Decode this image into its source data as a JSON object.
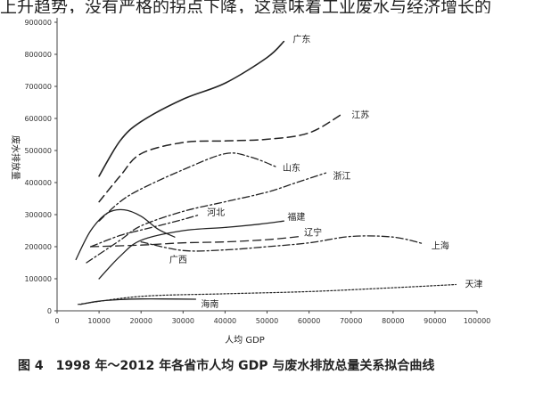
{
  "top_text": "上升趋势，没有严格的拐点下降，这意味着工业废水与经济增长的",
  "caption": "图 4　1998 年～2012 年各省市人均 GDP 与废水排放总量关系拟合曲线",
  "chart_data": {
    "type": "line",
    "title": "",
    "xlabel": "人均 GDP",
    "ylabel": "废水排放量",
    "xlim": [
      0,
      100000
    ],
    "ylim": [
      0,
      900000
    ],
    "x_ticks": [
      "0",
      "10000",
      "20000",
      "30000",
      "40000",
      "50000",
      "60000",
      "70000",
      "80000",
      "90000",
      "100000"
    ],
    "y_ticks": [
      "0",
      "100000",
      "200000",
      "300000",
      "400000",
      "500000",
      "600000",
      "700000",
      "800000",
      "900000"
    ],
    "grid": false,
    "series": [
      {
        "name": "广东",
        "dash": "solid",
        "width": 1.6,
        "points": [
          [
            10000,
            420000
          ],
          [
            15000,
            530000
          ],
          [
            20000,
            590000
          ],
          [
            30000,
            660000
          ],
          [
            40000,
            710000
          ],
          [
            50000,
            790000
          ],
          [
            54000,
            840000
          ]
        ]
      },
      {
        "name": "江苏",
        "dash": "long-dash",
        "width": 1.5,
        "points": [
          [
            10000,
            340000
          ],
          [
            15000,
            420000
          ],
          [
            20000,
            490000
          ],
          [
            30000,
            525000
          ],
          [
            40000,
            530000
          ],
          [
            50000,
            535000
          ],
          [
            60000,
            555000
          ],
          [
            68000,
            615000
          ]
        ]
      },
      {
        "name": "山东",
        "dash": "dash-dot",
        "width": 1.3,
        "points": [
          [
            10000,
            280000
          ],
          [
            15000,
            340000
          ],
          [
            20000,
            380000
          ],
          [
            30000,
            440000
          ],
          [
            40000,
            490000
          ],
          [
            46000,
            480000
          ],
          [
            52000,
            450000
          ]
        ]
      },
      {
        "name": "浙江",
        "dash": "dash-dot",
        "width": 1.3,
        "points": [
          [
            7000,
            150000
          ],
          [
            15000,
            220000
          ],
          [
            20000,
            265000
          ],
          [
            30000,
            310000
          ],
          [
            40000,
            340000
          ],
          [
            50000,
            370000
          ],
          [
            57000,
            400000
          ],
          [
            64000,
            430000
          ]
        ]
      },
      {
        "name": "河北",
        "dash": "dash-dot",
        "width": 1.3,
        "points": [
          [
            8000,
            200000
          ],
          [
            15000,
            235000
          ],
          [
            20000,
            252000
          ],
          [
            25000,
            268000
          ],
          [
            30000,
            285000
          ],
          [
            34000,
            300000
          ]
        ]
      },
      {
        "name": "福建",
        "dash": "solid",
        "width": 1.3,
        "points": [
          [
            10000,
            100000
          ],
          [
            15000,
            170000
          ],
          [
            20000,
            220000
          ],
          [
            30000,
            250000
          ],
          [
            40000,
            260000
          ],
          [
            48000,
            270000
          ],
          [
            54000,
            280000
          ]
        ]
      },
      {
        "name": "广西",
        "dash": "solid",
        "width": 1.3,
        "points": [
          [
            4500,
            160000
          ],
          [
            8000,
            250000
          ],
          [
            12000,
            305000
          ],
          [
            16000,
            315000
          ],
          [
            20000,
            295000
          ],
          [
            24000,
            255000
          ],
          [
            28000,
            230000
          ]
        ]
      },
      {
        "name": "辽宁",
        "dash": "long-dash",
        "width": 1.3,
        "points": [
          [
            8000,
            200000
          ],
          [
            20000,
            205000
          ],
          [
            30000,
            212000
          ],
          [
            40000,
            215000
          ],
          [
            50000,
            222000
          ],
          [
            58000,
            232000
          ]
        ]
      },
      {
        "name": "上海",
        "dash": "dash-dot",
        "width": 1.3,
        "points": [
          [
            20000,
            215000
          ],
          [
            30000,
            188000
          ],
          [
            40000,
            190000
          ],
          [
            50000,
            200000
          ],
          [
            60000,
            212000
          ],
          [
            70000,
            232000
          ],
          [
            80000,
            230000
          ],
          [
            87000,
            210000
          ]
        ]
      },
      {
        "name": "天津",
        "dash": "dotted",
        "width": 1.2,
        "points": [
          [
            5000,
            20000
          ],
          [
            20000,
            45000
          ],
          [
            40000,
            53000
          ],
          [
            60000,
            60000
          ],
          [
            80000,
            72000
          ],
          [
            95000,
            82000
          ]
        ]
      },
      {
        "name": "海南",
        "dash": "solid",
        "width": 1.3,
        "points": [
          [
            5500,
            20000
          ],
          [
            10000,
            30000
          ],
          [
            15000,
            35000
          ],
          [
            20000,
            37000
          ],
          [
            25000,
            37000
          ],
          [
            33000,
            36000
          ]
        ]
      }
    ]
  }
}
